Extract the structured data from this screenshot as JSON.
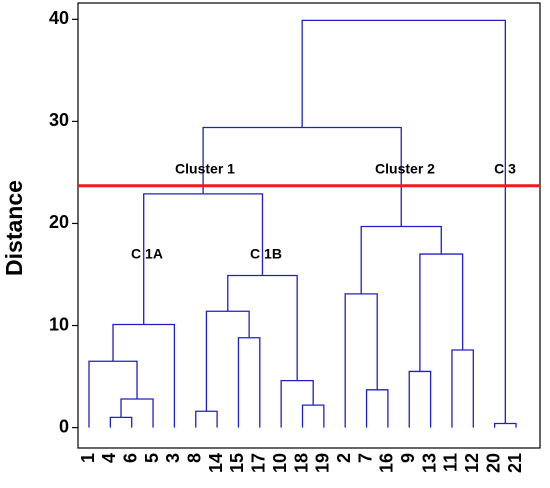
{
  "chart_data": {
    "type": "dendrogram",
    "y_label": "Distance",
    "ylim": [
      -2,
      41.6
    ],
    "yticks": [
      0,
      10,
      20,
      30,
      40
    ],
    "color": "#2020c0",
    "cut_height": 23.7,
    "cut_color": "#ee1c1c",
    "annotations": [
      "Cluster 1",
      "Cluster 2",
      "C 3",
      "C 1A",
      "C 1B"
    ],
    "tree": {
      "height": 39.9,
      "children": [
        {
          "height": 29.4,
          "children": [
            {
              "height": 22.9,
              "children": [
                {
                  "height": 10.1,
                  "children": [
                    {
                      "height": 6.5,
                      "children": [
                        "1",
                        {
                          "height": 2.8,
                          "children": [
                            {
                              "height": 1.0,
                              "children": [
                                "4",
                                "6"
                              ]
                            },
                            "5"
                          ]
                        }
                      ]
                    },
                    "3"
                  ]
                },
                {
                  "height": 14.9,
                  "children": [
                    {
                      "height": 11.4,
                      "children": [
                        {
                          "height": 1.6,
                          "children": [
                            "8",
                            "14"
                          ]
                        },
                        {
                          "height": 8.8,
                          "children": [
                            "15",
                            "17"
                          ]
                        }
                      ]
                    },
                    {
                      "height": 4.6,
                      "children": [
                        "10",
                        {
                          "height": 2.2,
                          "children": [
                            "18",
                            "19"
                          ]
                        }
                      ]
                    }
                  ]
                }
              ]
            },
            {
              "height": 19.7,
              "children": [
                {
                  "height": 13.1,
                  "children": [
                    "2",
                    {
                      "height": 3.7,
                      "children": [
                        "7",
                        "16"
                      ]
                    }
                  ]
                },
                {
                  "height": 17.0,
                  "children": [
                    {
                      "height": 5.5,
                      "children": [
                        "9",
                        "13"
                      ]
                    },
                    {
                      "height": 7.6,
                      "children": [
                        "11",
                        "12"
                      ]
                    }
                  ]
                }
              ]
            }
          ]
        },
        {
          "height": 0.4,
          "children": [
            "20",
            "21"
          ]
        }
      ]
    }
  }
}
